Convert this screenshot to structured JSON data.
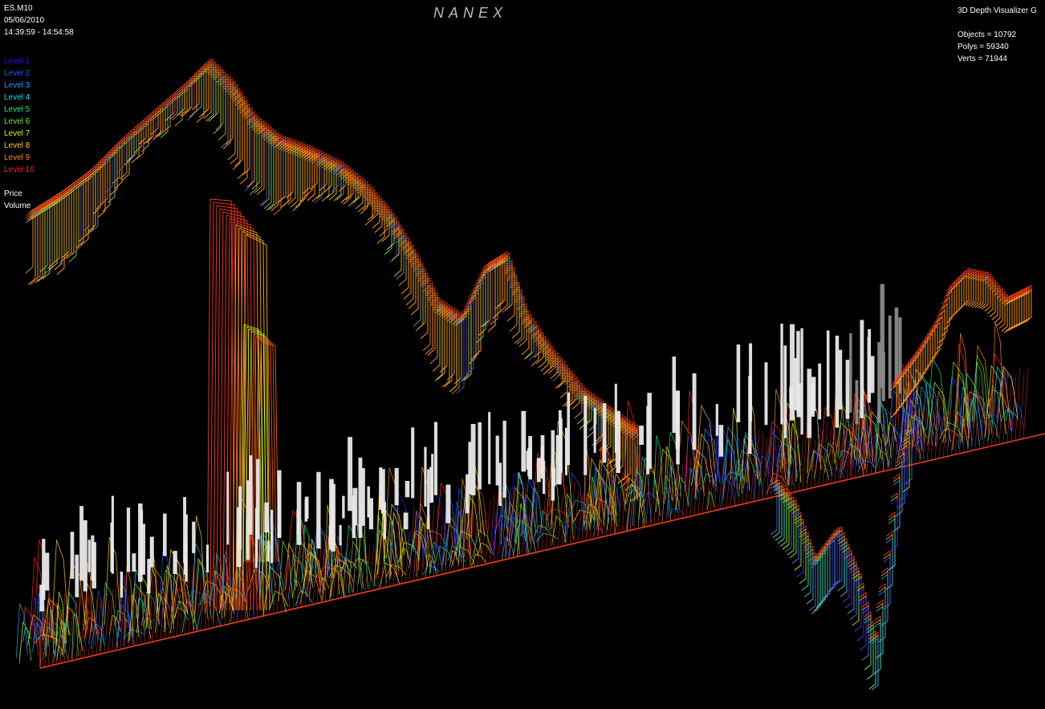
{
  "app": {
    "brand": "NANEX",
    "title": "3D Depth Visualizer G"
  },
  "info": {
    "symbol": "ES.M10",
    "date": "05/06/2010",
    "time_range": "14:39:59 - 14:54:58"
  },
  "legend": {
    "levels": [
      {
        "label": "Level 1",
        "color": "#1a1aff"
      },
      {
        "label": "Level 2",
        "color": "#1a5cff"
      },
      {
        "label": "Level 3",
        "color": "#19a5ff"
      },
      {
        "label": "Level 4",
        "color": "#18e0e0"
      },
      {
        "label": "Level 5",
        "color": "#22e880"
      },
      {
        "label": "Level 6",
        "color": "#6ef030"
      },
      {
        "label": "Level 7",
        "color": "#d8f020"
      },
      {
        "label": "Level 8",
        "color": "#ffc81a"
      },
      {
        "label": "Level 9",
        "color": "#ff8a1a"
      },
      {
        "label": "Level 10",
        "color": "#ff2a1a"
      }
    ]
  },
  "channels": {
    "price": "Price",
    "volume": "Volume"
  },
  "stats": {
    "objects": "Objects = 10792",
    "polys": "Polys = 59340",
    "verts": "Verts = 71944"
  },
  "colors": {
    "background": "#000000",
    "volume_bars": "#e8e8e8",
    "volume_bars_dark": "#8a8a8a"
  }
}
